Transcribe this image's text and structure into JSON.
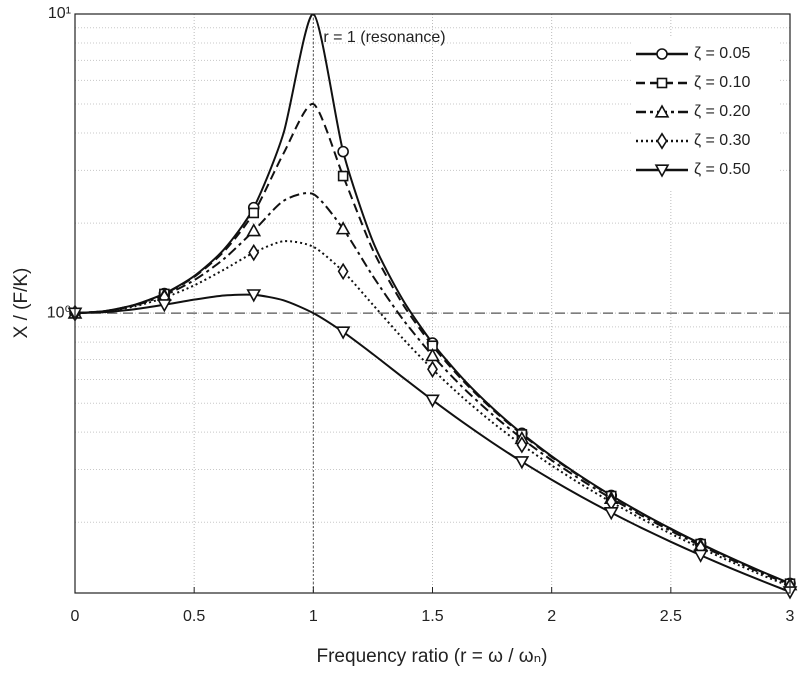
{
  "chart_data": {
    "type": "line",
    "xlabel": "Frequency ratio (r = ω / ωₙ)",
    "ylabel": "X / (F/K)",
    "annotation": "r = 1 (resonance)",
    "log_y": true,
    "grid": true,
    "legend": "upper right",
    "hline": 1,
    "vline": 1,
    "marker_every": 3,
    "xlim": [
      0,
      3
    ],
    "xticks": [
      0,
      0.5,
      1,
      1.5,
      2,
      2.5,
      3
    ],
    "ylim": [
      0.116,
      10
    ],
    "yticks": [
      {
        "value": 1,
        "label": "10⁰"
      },
      {
        "value": 10,
        "label": "10¹"
      }
    ],
    "minor_yticks": [
      0.2,
      0.3,
      0.4,
      0.5,
      0.6,
      0.7,
      0.8,
      0.9,
      2,
      3,
      4,
      5,
      6,
      7,
      8,
      9
    ],
    "x": [
      0,
      0.125,
      0.25,
      0.375,
      0.5,
      0.625,
      0.75,
      0.875,
      1,
      1.125,
      1.25,
      1.375,
      1.5,
      1.625,
      1.75,
      1.875,
      2,
      2.125,
      2.25,
      2.375,
      2.5,
      2.625,
      2.75,
      2.875,
      3
    ],
    "series": [
      {
        "name": "ζ = 0.05",
        "color": "#111",
        "dash": "none",
        "marker": "circle",
        "values": [
          1,
          1.0158,
          1.0663,
          1.1625,
          1.3304,
          1.6325,
          2.2528,
          3.997,
          10,
          3.4666,
          1.7354,
          1.1097,
          0.7943,
          0.6066,
          0.4831,
          0.3964,
          0.3326,
          0.2839,
          0.2458,
          0.2152,
          0.1903,
          0.1696,
          0.1522,
          0.1375,
          0.1249
        ]
      },
      {
        "name": "ζ = 0.10",
        "color": "#111",
        "dash": "9 5",
        "marker": "square",
        "values": [
          1,
          1.0155,
          1.0652,
          1.1592,
          1.3217,
          1.6075,
          2.1622,
          3.4188,
          5,
          2.8726,
          1.6245,
          1.0728,
          0.7779,
          0.5979,
          0.478,
          0.3932,
          0.3304,
          0.2824,
          0.2447,
          0.2144,
          0.1896,
          0.1691,
          0.1518,
          0.1372,
          0.1246
        ]
      },
      {
        "name": "ζ = 0.20",
        "color": "#111",
        "dash": "10 4 3 4",
        "marker": "triangle",
        "values": [
          1,
          1.0146,
          1.0606,
          1.1463,
          1.2883,
          1.5182,
          1.8851,
          2.374,
          2.5,
          1.9137,
          1.3287,
          0.9553,
          0.7212,
          0.5667,
          0.4591,
          0.3809,
          0.3221,
          0.2765,
          0.2403,
          0.2111,
          0.1871,
          0.1671,
          0.1503,
          0.1359,
          0.1236
        ]
      },
      {
        "name": "ζ = 0.30",
        "color": "#111",
        "dash": "2 3",
        "marker": "diamond",
        "values": [
          1,
          1.0129,
          1.0533,
          1.1257,
          1.238,
          1.3976,
          1.5933,
          1.7393,
          1.6667,
          1.3786,
          1.0667,
          0.8237,
          0.6492,
          0.524,
          0.4321,
          0.3629,
          0.3095,
          0.2674,
          0.2336,
          0.206,
          0.1831,
          0.164,
          0.1478,
          0.1339,
          0.122
        ]
      },
      {
        "name": "ζ = 0.50",
        "color": "#111",
        "dash": "none",
        "marker": "triangle-down",
        "values": [
          1,
          1.0078,
          1.0307,
          1.0665,
          1.1094,
          1.1456,
          1.1517,
          1.1039,
          1,
          0.8651,
          0.7295,
          0.6104,
          0.5121,
          0.4331,
          0.3697,
          0.3187,
          0.2774,
          0.2434,
          0.2153,
          0.1918,
          0.172,
          0.1551,
          0.1405,
          0.128,
          0.117
        ]
      }
    ]
  }
}
